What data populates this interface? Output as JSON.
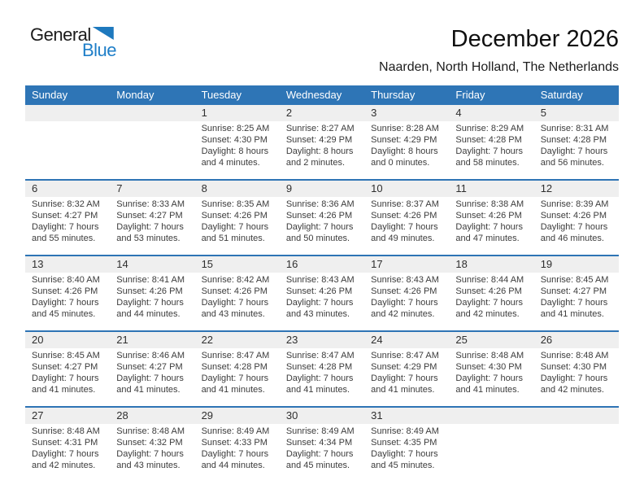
{
  "logo": {
    "part1": "General",
    "part2": "Blue"
  },
  "header": {
    "title": "December 2026",
    "subtitle": "Naarden, North Holland, The Netherlands"
  },
  "colors": {
    "header_bg": "#2E75B6",
    "row_divider": "#2E74B5",
    "number_strip_bg": "#EFEFEF",
    "logo_blue": "#1E7EC8"
  },
  "calendar": {
    "weekdays": [
      "Sunday",
      "Monday",
      "Tuesday",
      "Wednesday",
      "Thursday",
      "Friday",
      "Saturday"
    ],
    "weeks": [
      [
        null,
        null,
        {
          "num": "1",
          "sunrise": "Sunrise: 8:25 AM",
          "sunset": "Sunset: 4:30 PM",
          "daylight": "Daylight: 8 hours and 4 minutes."
        },
        {
          "num": "2",
          "sunrise": "Sunrise: 8:27 AM",
          "sunset": "Sunset: 4:29 PM",
          "daylight": "Daylight: 8 hours and 2 minutes."
        },
        {
          "num": "3",
          "sunrise": "Sunrise: 8:28 AM",
          "sunset": "Sunset: 4:29 PM",
          "daylight": "Daylight: 8 hours and 0 minutes."
        },
        {
          "num": "4",
          "sunrise": "Sunrise: 8:29 AM",
          "sunset": "Sunset: 4:28 PM",
          "daylight": "Daylight: 7 hours and 58 minutes."
        },
        {
          "num": "5",
          "sunrise": "Sunrise: 8:31 AM",
          "sunset": "Sunset: 4:28 PM",
          "daylight": "Daylight: 7 hours and 56 minutes."
        }
      ],
      [
        {
          "num": "6",
          "sunrise": "Sunrise: 8:32 AM",
          "sunset": "Sunset: 4:27 PM",
          "daylight": "Daylight: 7 hours and 55 minutes."
        },
        {
          "num": "7",
          "sunrise": "Sunrise: 8:33 AM",
          "sunset": "Sunset: 4:27 PM",
          "daylight": "Daylight: 7 hours and 53 minutes."
        },
        {
          "num": "8",
          "sunrise": "Sunrise: 8:35 AM",
          "sunset": "Sunset: 4:26 PM",
          "daylight": "Daylight: 7 hours and 51 minutes."
        },
        {
          "num": "9",
          "sunrise": "Sunrise: 8:36 AM",
          "sunset": "Sunset: 4:26 PM",
          "daylight": "Daylight: 7 hours and 50 minutes."
        },
        {
          "num": "10",
          "sunrise": "Sunrise: 8:37 AM",
          "sunset": "Sunset: 4:26 PM",
          "daylight": "Daylight: 7 hours and 49 minutes."
        },
        {
          "num": "11",
          "sunrise": "Sunrise: 8:38 AM",
          "sunset": "Sunset: 4:26 PM",
          "daylight": "Daylight: 7 hours and 47 minutes."
        },
        {
          "num": "12",
          "sunrise": "Sunrise: 8:39 AM",
          "sunset": "Sunset: 4:26 PM",
          "daylight": "Daylight: 7 hours and 46 minutes."
        }
      ],
      [
        {
          "num": "13",
          "sunrise": "Sunrise: 8:40 AM",
          "sunset": "Sunset: 4:26 PM",
          "daylight": "Daylight: 7 hours and 45 minutes."
        },
        {
          "num": "14",
          "sunrise": "Sunrise: 8:41 AM",
          "sunset": "Sunset: 4:26 PM",
          "daylight": "Daylight: 7 hours and 44 minutes."
        },
        {
          "num": "15",
          "sunrise": "Sunrise: 8:42 AM",
          "sunset": "Sunset: 4:26 PM",
          "daylight": "Daylight: 7 hours and 43 minutes."
        },
        {
          "num": "16",
          "sunrise": "Sunrise: 8:43 AM",
          "sunset": "Sunset: 4:26 PM",
          "daylight": "Daylight: 7 hours and 43 minutes."
        },
        {
          "num": "17",
          "sunrise": "Sunrise: 8:43 AM",
          "sunset": "Sunset: 4:26 PM",
          "daylight": "Daylight: 7 hours and 42 minutes."
        },
        {
          "num": "18",
          "sunrise": "Sunrise: 8:44 AM",
          "sunset": "Sunset: 4:26 PM",
          "daylight": "Daylight: 7 hours and 42 minutes."
        },
        {
          "num": "19",
          "sunrise": "Sunrise: 8:45 AM",
          "sunset": "Sunset: 4:27 PM",
          "daylight": "Daylight: 7 hours and 41 minutes."
        }
      ],
      [
        {
          "num": "20",
          "sunrise": "Sunrise: 8:45 AM",
          "sunset": "Sunset: 4:27 PM",
          "daylight": "Daylight: 7 hours and 41 minutes."
        },
        {
          "num": "21",
          "sunrise": "Sunrise: 8:46 AM",
          "sunset": "Sunset: 4:27 PM",
          "daylight": "Daylight: 7 hours and 41 minutes."
        },
        {
          "num": "22",
          "sunrise": "Sunrise: 8:47 AM",
          "sunset": "Sunset: 4:28 PM",
          "daylight": "Daylight: 7 hours and 41 minutes."
        },
        {
          "num": "23",
          "sunrise": "Sunrise: 8:47 AM",
          "sunset": "Sunset: 4:28 PM",
          "daylight": "Daylight: 7 hours and 41 minutes."
        },
        {
          "num": "24",
          "sunrise": "Sunrise: 8:47 AM",
          "sunset": "Sunset: 4:29 PM",
          "daylight": "Daylight: 7 hours and 41 minutes."
        },
        {
          "num": "25",
          "sunrise": "Sunrise: 8:48 AM",
          "sunset": "Sunset: 4:30 PM",
          "daylight": "Daylight: 7 hours and 41 minutes."
        },
        {
          "num": "26",
          "sunrise": "Sunrise: 8:48 AM",
          "sunset": "Sunset: 4:30 PM",
          "daylight": "Daylight: 7 hours and 42 minutes."
        }
      ],
      [
        {
          "num": "27",
          "sunrise": "Sunrise: 8:48 AM",
          "sunset": "Sunset: 4:31 PM",
          "daylight": "Daylight: 7 hours and 42 minutes."
        },
        {
          "num": "28",
          "sunrise": "Sunrise: 8:48 AM",
          "sunset": "Sunset: 4:32 PM",
          "daylight": "Daylight: 7 hours and 43 minutes."
        },
        {
          "num": "29",
          "sunrise": "Sunrise: 8:49 AM",
          "sunset": "Sunset: 4:33 PM",
          "daylight": "Daylight: 7 hours and 44 minutes."
        },
        {
          "num": "30",
          "sunrise": "Sunrise: 8:49 AM",
          "sunset": "Sunset: 4:34 PM",
          "daylight": "Daylight: 7 hours and 45 minutes."
        },
        {
          "num": "31",
          "sunrise": "Sunrise: 8:49 AM",
          "sunset": "Sunset: 4:35 PM",
          "daylight": "Daylight: 7 hours and 45 minutes."
        },
        null,
        null
      ]
    ]
  }
}
